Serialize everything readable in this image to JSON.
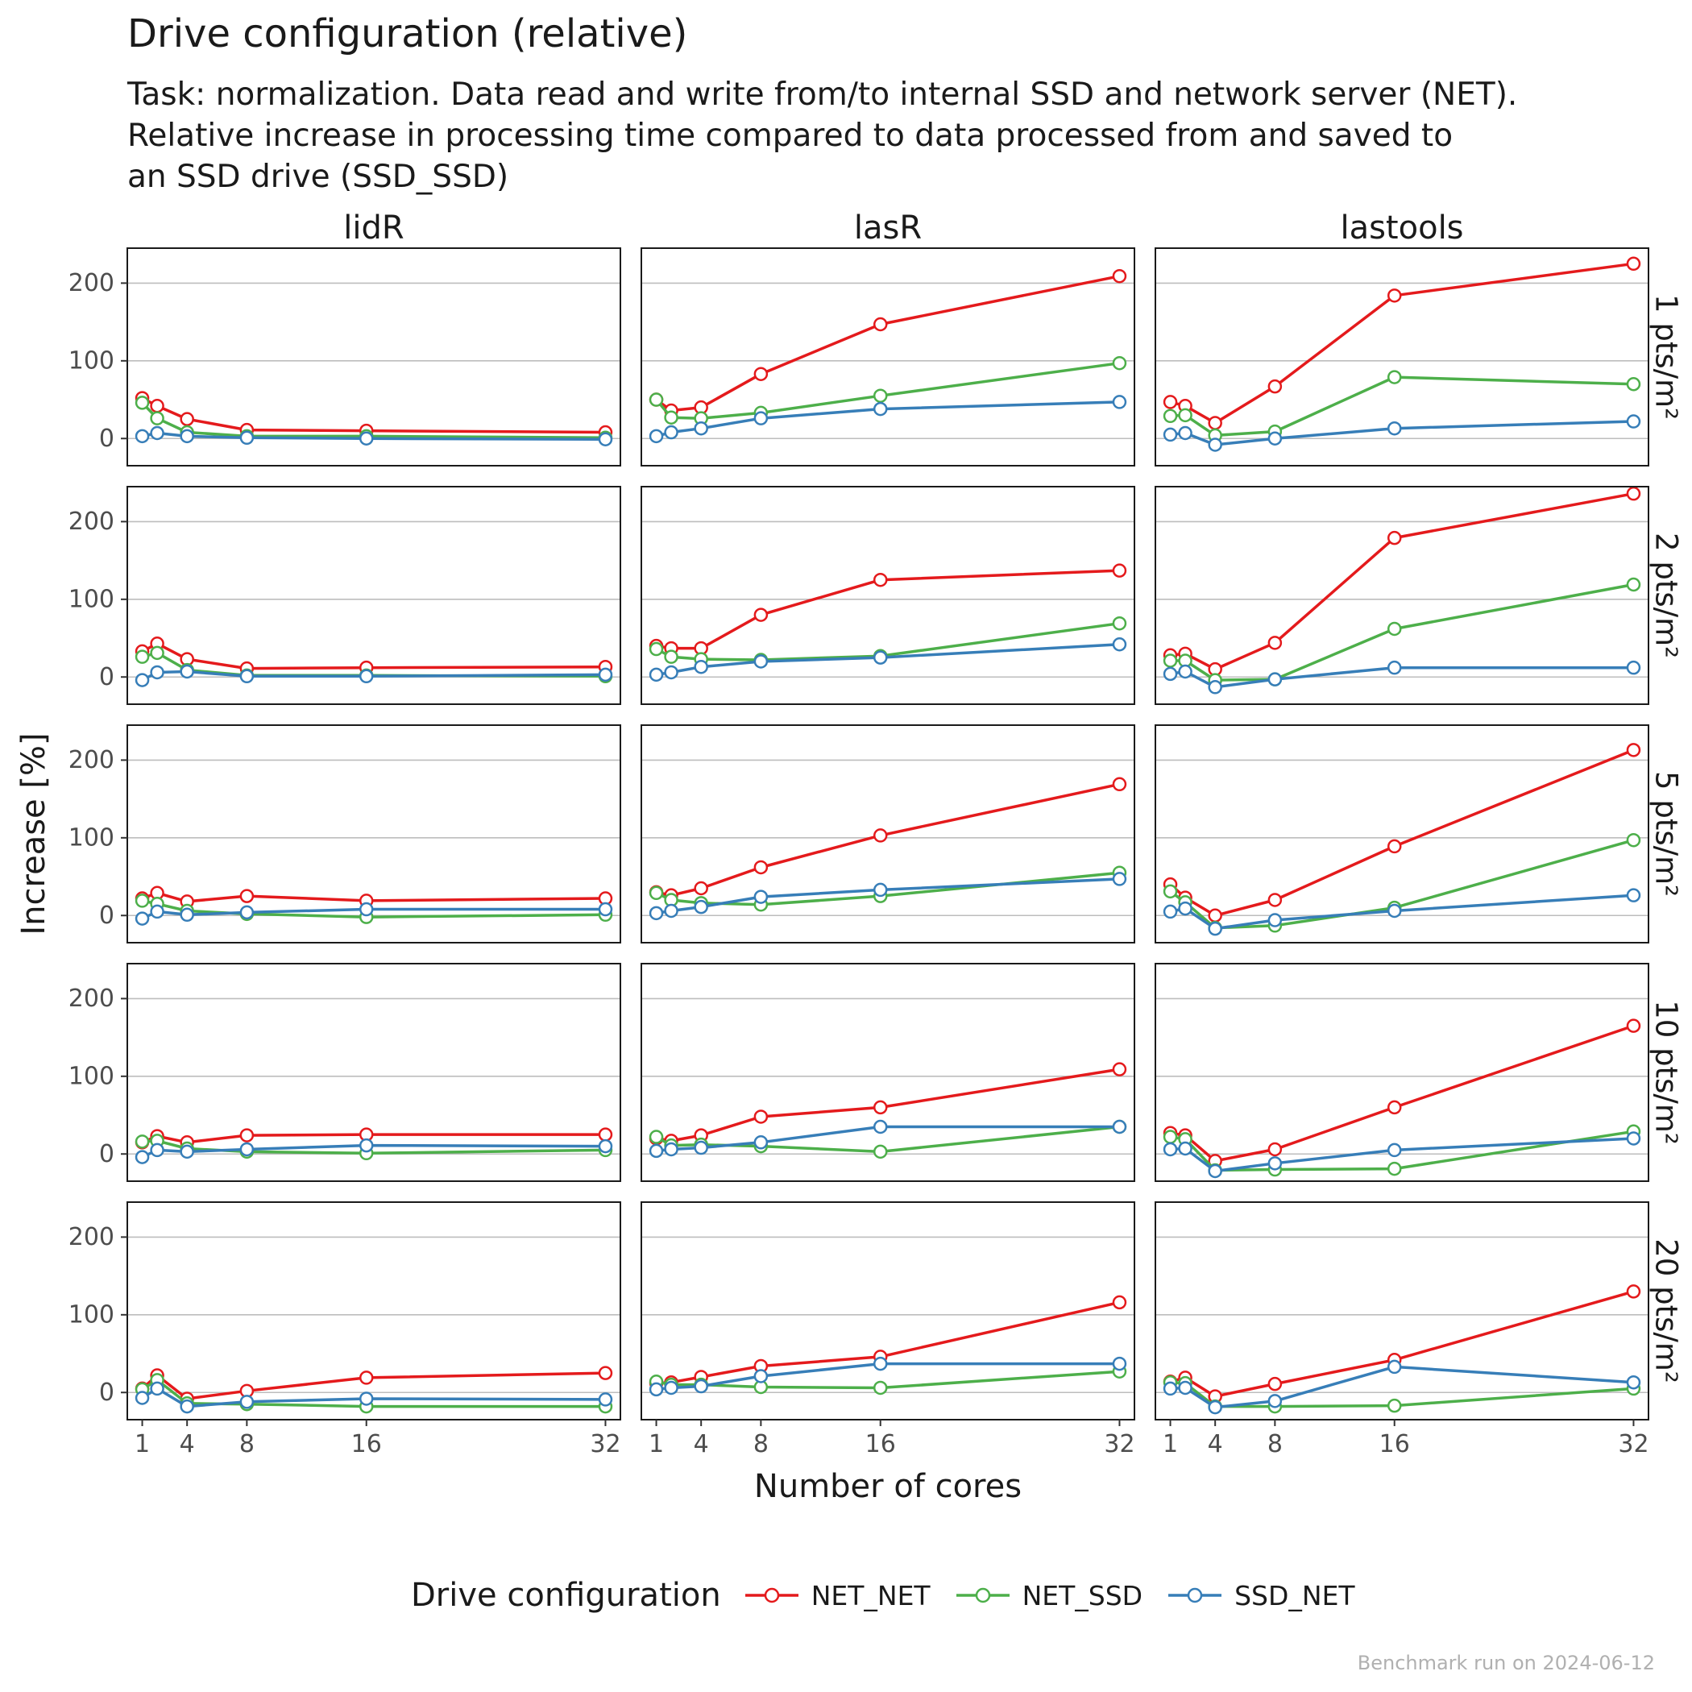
{
  "chart_data": {
    "type": "line",
    "title": "Drive configuration (relative)",
    "subtitle": [
      "Task: normalization. Data read and write from/to internal SSD and network server (NET).",
      "Relative increase in processing time compared to data processed from and saved to",
      "an SSD drive (SSD_SSD)"
    ],
    "xlabel": "Number of cores",
    "ylabel": "Increase [%]",
    "x": [
      1,
      2,
      4,
      8,
      16,
      32
    ],
    "x_ticks": [
      1,
      4,
      8,
      16,
      32
    ],
    "xlim": [
      0,
      33
    ],
    "ylim": [
      -35,
      245
    ],
    "y_ticks": [
      0,
      100,
      200
    ],
    "grid": "horizontal",
    "columns": [
      "lidR",
      "lasR",
      "lastools"
    ],
    "rows": [
      "1 pts/m²",
      "2 pts/m²",
      "5 pts/m²",
      "10 pts/m²",
      "20 pts/m²"
    ],
    "legend": {
      "title": "Drive configuration",
      "position": "bottom",
      "entries": [
        {
          "name": "NET_NET",
          "color": "#E41A1C"
        },
        {
          "name": "NET_SSD",
          "color": "#4DAF4A"
        },
        {
          "name": "SSD_NET",
          "color": "#377EB8"
        }
      ]
    },
    "panels": [
      {
        "column": "lidR",
        "row": "1 pts/m²",
        "series": [
          {
            "name": "NET_NET",
            "values": [
              52,
              42,
              25,
              11,
              10,
              8
            ]
          },
          {
            "name": "NET_SSD",
            "values": [
              46,
              26,
              8,
              3,
              3,
              1
            ]
          },
          {
            "name": "SSD_NET",
            "values": [
              3,
              7,
              3,
              1,
              0,
              -1
            ]
          }
        ]
      },
      {
        "column": "lasR",
        "row": "1 pts/m²",
        "series": [
          {
            "name": "NET_NET",
            "values": [
              50,
              36,
              40,
              83,
              147,
              209
            ]
          },
          {
            "name": "NET_SSD",
            "values": [
              50,
              27,
              26,
              33,
              55,
              97
            ]
          },
          {
            "name": "SSD_NET",
            "values": [
              3,
              8,
              13,
              26,
              38,
              47
            ]
          }
        ]
      },
      {
        "column": "lastools",
        "row": "1 pts/m²",
        "series": [
          {
            "name": "NET_NET",
            "values": [
              47,
              42,
              20,
              67,
              184,
              225
            ]
          },
          {
            "name": "NET_SSD",
            "values": [
              29,
              30,
              4,
              9,
              79,
              70
            ]
          },
          {
            "name": "SSD_NET",
            "values": [
              5,
              7,
              -8,
              0,
              13,
              22
            ]
          }
        ]
      },
      {
        "column": "lidR",
        "row": "2 pts/m²",
        "series": [
          {
            "name": "NET_NET",
            "values": [
              33,
              43,
              23,
              11,
              12,
              13
            ]
          },
          {
            "name": "NET_SSD",
            "values": [
              26,
              31,
              9,
              2,
              2,
              1
            ]
          },
          {
            "name": "SSD_NET",
            "values": [
              -4,
              6,
              7,
              1,
              1,
              3
            ]
          }
        ]
      },
      {
        "column": "lasR",
        "row": "2 pts/m²",
        "series": [
          {
            "name": "NET_NET",
            "values": [
              40,
              37,
              37,
              80,
              125,
              137
            ]
          },
          {
            "name": "NET_SSD",
            "values": [
              36,
              26,
              23,
              22,
              27,
              69
            ]
          },
          {
            "name": "SSD_NET",
            "values": [
              3,
              6,
              13,
              20,
              25,
              42
            ]
          }
        ]
      },
      {
        "column": "lastools",
        "row": "2 pts/m²",
        "series": [
          {
            "name": "NET_NET",
            "values": [
              28,
              30,
              10,
              44,
              179,
              236
            ]
          },
          {
            "name": "NET_SSD",
            "values": [
              21,
              21,
              -4,
              -3,
              62,
              119
            ]
          },
          {
            "name": "SSD_NET",
            "values": [
              4,
              7,
              -13,
              -3,
              12,
              12
            ]
          }
        ]
      },
      {
        "column": "lidR",
        "row": "5 pts/m²",
        "series": [
          {
            "name": "NET_NET",
            "values": [
              22,
              29,
              18,
              25,
              19,
              22
            ]
          },
          {
            "name": "NET_SSD",
            "values": [
              19,
              15,
              6,
              2,
              -2,
              1
            ]
          },
          {
            "name": "SSD_NET",
            "values": [
              -4,
              5,
              1,
              4,
              8,
              8
            ]
          }
        ]
      },
      {
        "column": "lasR",
        "row": "5 pts/m²",
        "series": [
          {
            "name": "NET_NET",
            "values": [
              30,
              26,
              35,
              62,
              103,
              169
            ]
          },
          {
            "name": "NET_SSD",
            "values": [
              29,
              20,
              16,
              14,
              25,
              55
            ]
          },
          {
            "name": "SSD_NET",
            "values": [
              3,
              6,
              11,
              24,
              33,
              47
            ]
          }
        ]
      },
      {
        "column": "lastools",
        "row": "5 pts/m²",
        "series": [
          {
            "name": "NET_NET",
            "values": [
              40,
              23,
              0,
              20,
              89,
              213
            ]
          },
          {
            "name": "NET_SSD",
            "values": [
              31,
              17,
              -16,
              -13,
              10,
              97
            ]
          },
          {
            "name": "SSD_NET",
            "values": [
              5,
              9,
              -17,
              -6,
              6,
              26
            ]
          }
        ]
      },
      {
        "column": "lidR",
        "row": "10 pts/m²",
        "series": [
          {
            "name": "NET_NET",
            "values": [
              15,
              23,
              15,
              24,
              25,
              25
            ]
          },
          {
            "name": "NET_SSD",
            "values": [
              16,
              17,
              7,
              3,
              1,
              5
            ]
          },
          {
            "name": "SSD_NET",
            "values": [
              -4,
              5,
              3,
              6,
              11,
              10
            ]
          }
        ]
      },
      {
        "column": "lasR",
        "row": "10 pts/m²",
        "series": [
          {
            "name": "NET_NET",
            "values": [
              20,
              17,
              24,
              48,
              60,
              109
            ]
          },
          {
            "name": "NET_SSD",
            "values": [
              22,
              11,
              12,
              10,
              3,
              35
            ]
          },
          {
            "name": "SSD_NET",
            "values": [
              4,
              6,
              8,
              15,
              35,
              35
            ]
          }
        ]
      },
      {
        "column": "lastools",
        "row": "10 pts/m²",
        "series": [
          {
            "name": "NET_NET",
            "values": [
              27,
              24,
              -9,
              6,
              60,
              165
            ]
          },
          {
            "name": "NET_SSD",
            "values": [
              22,
              19,
              -21,
              -20,
              -19,
              29
            ]
          },
          {
            "name": "SSD_NET",
            "values": [
              6,
              7,
              -22,
              -12,
              5,
              20
            ]
          }
        ]
      },
      {
        "column": "lidR",
        "row": "20 pts/m²",
        "series": [
          {
            "name": "NET_NET",
            "values": [
              5,
              22,
              -8,
              2,
              19,
              25
            ]
          },
          {
            "name": "NET_SSD",
            "values": [
              4,
              16,
              -14,
              -15,
              -18,
              -18
            ]
          },
          {
            "name": "SSD_NET",
            "values": [
              -7,
              5,
              -18,
              -12,
              -8,
              -9
            ]
          }
        ]
      },
      {
        "column": "lasR",
        "row": "20 pts/m²",
        "series": [
          {
            "name": "NET_NET",
            "values": [
              12,
              13,
              20,
              34,
              46,
              116
            ]
          },
          {
            "name": "NET_SSD",
            "values": [
              14,
              10,
              10,
              7,
              6,
              27
            ]
          },
          {
            "name": "SSD_NET",
            "values": [
              4,
              6,
              8,
              21,
              37,
              37
            ]
          }
        ]
      },
      {
        "column": "lastools",
        "row": "20 pts/m²",
        "series": [
          {
            "name": "NET_NET",
            "values": [
              14,
              19,
              -5,
              11,
              42,
              130
            ]
          },
          {
            "name": "NET_SSD",
            "values": [
              13,
              12,
              -18,
              -18,
              -17,
              5
            ]
          },
          {
            "name": "SSD_NET",
            "values": [
              5,
              6,
              -19,
              -11,
              33,
              13
            ]
          }
        ]
      }
    ],
    "footnote": "Benchmark run on 2024-06-12"
  }
}
